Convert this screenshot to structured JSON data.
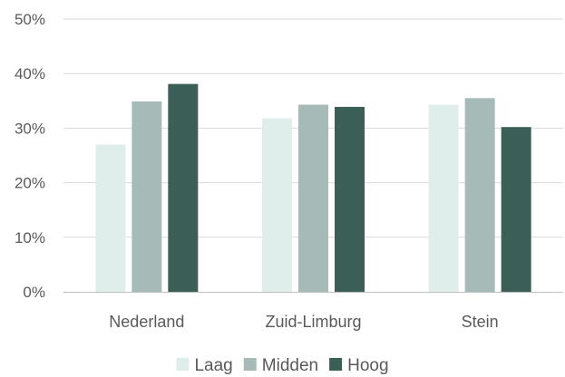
{
  "chart_data": {
    "type": "bar",
    "title": "",
    "xlabel": "",
    "ylabel": "",
    "categories": [
      "Nederland",
      "Zuid-Limburg",
      "Stein"
    ],
    "series": [
      {
        "name": "Laag",
        "color": "#dfeeeb",
        "values": [
          27,
          31.8,
          34.3
        ]
      },
      {
        "name": "Midden",
        "color": "#a6bbb7",
        "values": [
          34.9,
          34.3,
          35.5
        ]
      },
      {
        "name": "Hoog",
        "color": "#3b5e57",
        "values": [
          38.1,
          33.9,
          30.2
        ]
      }
    ],
    "ylim": [
      0,
      50
    ],
    "yticks": [
      0,
      10,
      20,
      30,
      40,
      50
    ],
    "ytick_labels": [
      "0%",
      "10%",
      "20%",
      "30%",
      "40%",
      "50%"
    ],
    "grid": true,
    "legend_position": "bottom"
  }
}
